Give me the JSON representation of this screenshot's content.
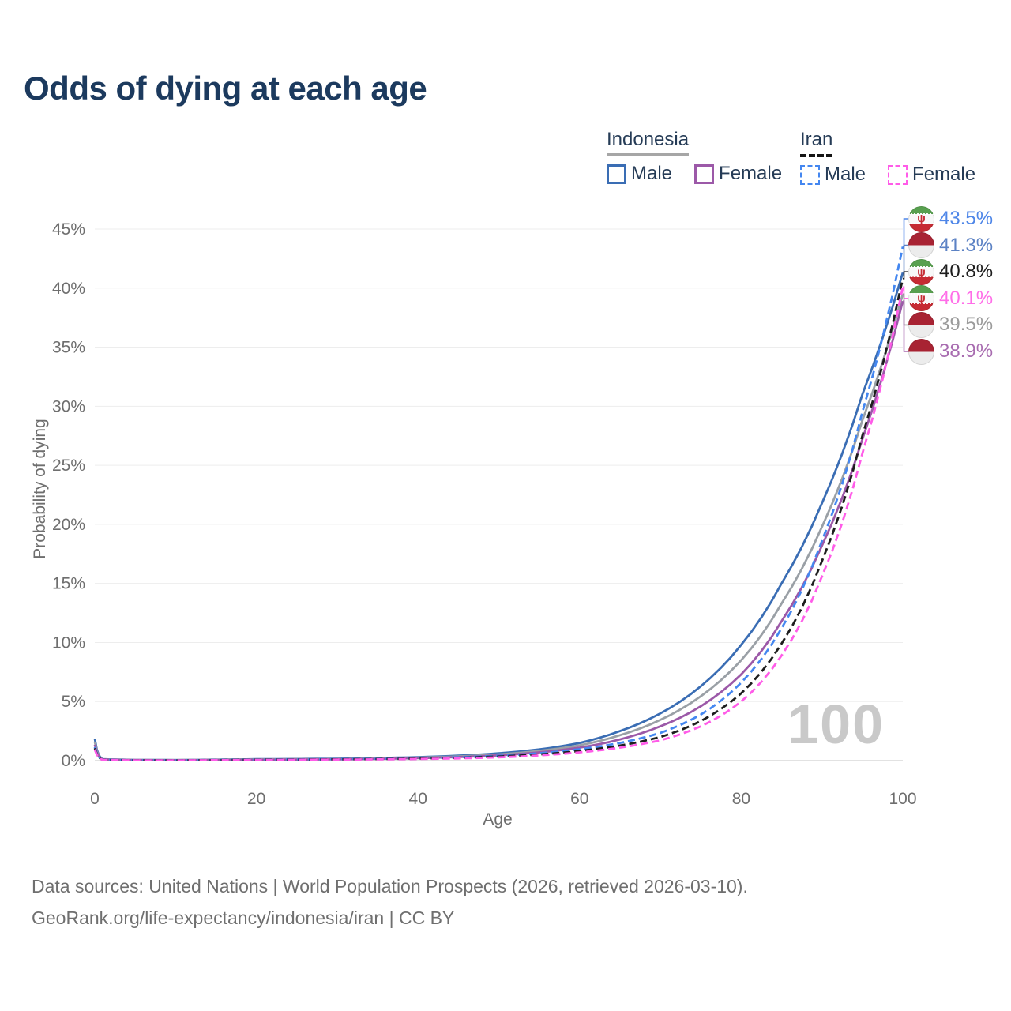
{
  "title": "Odds of dying at each age",
  "watermark": "100",
  "legend": {
    "indonesia": {
      "label": "Indonesia",
      "male": "Male",
      "female": "Female",
      "line_color": "#a6a6a6"
    },
    "iran": {
      "label": "Iran",
      "male": "Male",
      "female": "Female",
      "line_color": "#151515"
    }
  },
  "footer": {
    "line1": "Data sources: United Nations | World Population Prospects (2026, retrieved 2026-03-10).",
    "line2": "GeoRank.org/life-expectancy/indonesia/iran | CC BY"
  },
  "end_labels": [
    {
      "value": "43.5%",
      "country": "iran",
      "series": "iran-male",
      "color": "#4e86e8"
    },
    {
      "value": "41.3%",
      "country": "indonesia",
      "series": "indonesia-male",
      "color": "#5c82c4"
    },
    {
      "value": "40.8%",
      "country": "iran",
      "series": "iran-both",
      "color": "#1d1d1d"
    },
    {
      "value": "40.1%",
      "country": "iran",
      "series": "iran-female",
      "color": "#ff6ee8"
    },
    {
      "value": "39.5%",
      "country": "indonesia",
      "series": "indonesia-both",
      "color": "#9b9b9b"
    },
    {
      "value": "38.9%",
      "country": "indonesia",
      "series": "indonesia-female",
      "color": "#a86cb0"
    }
  ],
  "chart_data": {
    "type": "line",
    "title": "Odds of dying at each age",
    "xlabel": "Age",
    "ylabel": "Probability of dying",
    "xlim": [
      0,
      100
    ],
    "ylim": [
      0,
      45
    ],
    "x_ticks": [
      0,
      20,
      40,
      60,
      80,
      100
    ],
    "y_ticks": [
      "0%",
      "5%",
      "10%",
      "15%",
      "20%",
      "25%",
      "30%",
      "35%",
      "40%",
      "45%"
    ],
    "y_tick_step": 5,
    "grid": "horizontal-only",
    "legend_position": "top-right",
    "x": [
      0,
      1,
      5,
      10,
      15,
      20,
      25,
      30,
      35,
      40,
      45,
      50,
      55,
      60,
      65,
      70,
      75,
      80,
      85,
      90,
      95,
      100
    ],
    "series": [
      {
        "id": "indonesia-male",
        "name": "Indonesia Male",
        "dash": "solid",
        "color": "#3a6db4",
        "values": [
          1.85,
          0.12,
          0.06,
          0.05,
          0.08,
          0.12,
          0.14,
          0.17,
          0.22,
          0.29,
          0.42,
          0.62,
          0.95,
          1.5,
          2.5,
          4.0,
          6.3,
          9.8,
          15.0,
          21.8,
          31.0,
          41.3
        ]
      },
      {
        "id": "indonesia-both",
        "name": "Indonesia Both sexes",
        "dash": "solid",
        "color": "#9aa0a6",
        "values": [
          1.6,
          0.1,
          0.05,
          0.045,
          0.07,
          0.1,
          0.12,
          0.14,
          0.18,
          0.25,
          0.36,
          0.53,
          0.82,
          1.3,
          2.15,
          3.45,
          5.45,
          8.5,
          13.3,
          19.8,
          28.8,
          39.5
        ]
      },
      {
        "id": "indonesia-female",
        "name": "Indonesia Female",
        "dash": "solid",
        "color": "#9c59a8",
        "values": [
          1.35,
          0.09,
          0.045,
          0.04,
          0.055,
          0.075,
          0.09,
          0.11,
          0.15,
          0.21,
          0.3,
          0.45,
          0.7,
          1.1,
          1.8,
          2.9,
          4.6,
          7.3,
          11.8,
          18.2,
          27.2,
          38.9
        ]
      },
      {
        "id": "iran-male",
        "name": "Iran Male",
        "dash": "dashed",
        "color": "#4487f0",
        "values": [
          1.15,
          0.08,
          0.04,
          0.035,
          0.06,
          0.09,
          0.11,
          0.13,
          0.16,
          0.21,
          0.28,
          0.41,
          0.62,
          0.97,
          1.5,
          2.35,
          3.9,
          6.6,
          11.2,
          18.6,
          29.5,
          43.5
        ]
      },
      {
        "id": "iran-both",
        "name": "Iran Both sexes",
        "dash": "dashed",
        "color": "#1d1d1d",
        "values": [
          1.05,
          0.07,
          0.035,
          0.03,
          0.05,
          0.075,
          0.09,
          0.11,
          0.135,
          0.175,
          0.24,
          0.35,
          0.52,
          0.82,
          1.28,
          2.0,
          3.35,
          5.7,
          9.9,
          16.9,
          27.5,
          40.8
        ]
      },
      {
        "id": "iran-female",
        "name": "Iran Female",
        "dash": "dashed",
        "color": "#ff5ce8",
        "values": [
          0.95,
          0.065,
          0.03,
          0.027,
          0.04,
          0.055,
          0.07,
          0.085,
          0.105,
          0.14,
          0.19,
          0.28,
          0.44,
          0.7,
          1.1,
          1.72,
          2.9,
          5.0,
          8.9,
          15.6,
          26.0,
          40.1
        ]
      }
    ]
  }
}
